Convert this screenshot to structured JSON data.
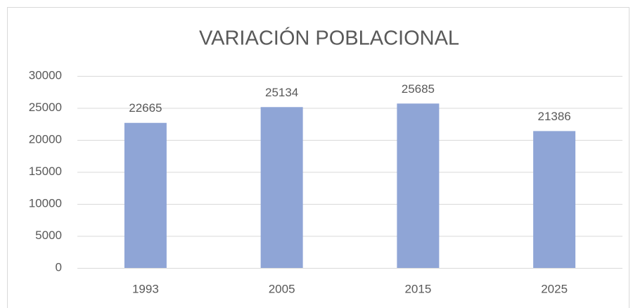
{
  "chart_data": {
    "type": "bar",
    "title": "VARIACIÓN POBLACIONAL",
    "categories": [
      "1993",
      "2005",
      "2015",
      "2025"
    ],
    "values": [
      22665,
      25134,
      25685,
      21386
    ],
    "color": "#8fa5d6",
    "ylim": [
      0,
      30000
    ],
    "yticks": [
      0,
      5000,
      10000,
      15000,
      20000,
      25000,
      30000
    ],
    "grid": true,
    "data_labels": true
  }
}
